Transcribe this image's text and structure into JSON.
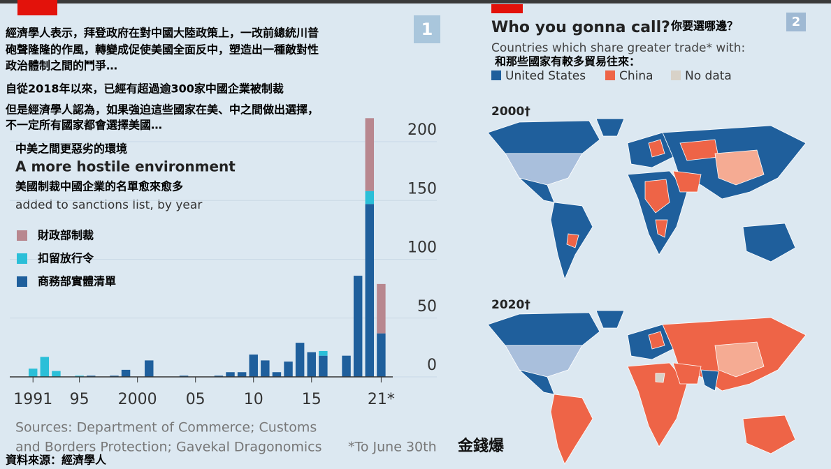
{
  "headline": [
    "經濟學人表示，拜登政府在對中國大陸政策上，一改前總統川普",
    "砲聲隆隆的作風，轉變成促使美國全面反中，塑造出一種敵對性",
    "政治體制之間的鬥爭…",
    "自從2018年以來，已經有超過逾300家中國企業被制裁",
    "但是經濟學人認為，如果強迫這些國家在美、中之間做出選擇，",
    "不一定所有國家都會選擇美國…"
  ],
  "badge_left": "1",
  "chart_data": {
    "type": "bar",
    "stacked": true,
    "title_zh": "中美之間更惡劣的環境",
    "title": "A more hostile environment",
    "subtitle_zh": "美國制裁中國企業的名單愈來愈多",
    "subtitle": "added to sanctions list, by year",
    "x": [
      1991,
      1992,
      1993,
      1994,
      1995,
      1996,
      1997,
      1998,
      1999,
      2000,
      2001,
      2002,
      2003,
      2004,
      2005,
      2006,
      2007,
      2008,
      2009,
      2010,
      2011,
      2012,
      2013,
      2014,
      2015,
      2016,
      2017,
      2018,
      2019,
      2020,
      2021
    ],
    "series": [
      {
        "name": "商務部實體清單",
        "color": "#1f5f9c",
        "values": [
          0,
          0,
          0,
          0,
          0,
          1,
          0,
          1,
          6,
          0,
          14,
          0,
          0,
          1,
          0,
          0,
          1,
          4,
          4,
          19,
          14,
          4,
          13,
          29,
          21,
          18,
          0,
          18,
          86,
          147,
          37
        ]
      },
      {
        "name": "扣留放行令",
        "color": "#2bbfd8",
        "values": [
          7,
          17,
          5,
          0,
          1,
          0,
          0,
          0,
          0,
          0,
          0,
          0,
          0,
          0,
          0,
          0,
          0,
          0,
          0,
          0,
          0,
          0,
          0,
          0,
          0,
          4,
          0,
          0,
          0,
          11,
          0
        ]
      },
      {
        "name": "財政部制裁",
        "color": "#b8878f",
        "values": [
          0,
          0,
          0,
          0,
          0,
          0,
          0,
          0,
          0,
          0,
          0,
          0,
          0,
          0,
          0,
          0,
          0,
          0,
          0,
          0,
          0,
          0,
          0,
          0,
          0,
          0,
          0,
          0,
          0,
          62,
          42
        ]
      }
    ],
    "xlim": [
      1989,
      2022
    ],
    "xticks": [
      1991,
      {
        "value": 1995,
        "label": "95"
      },
      2000,
      {
        "value": 2005,
        "label": "05"
      },
      {
        "value": 2010,
        "label": "10"
      },
      {
        "value": 2015,
        "label": "15"
      },
      {
        "value": 2021,
        "label": "21*"
      }
    ],
    "ylim": [
      0,
      200
    ],
    "yticks": [
      0,
      50,
      100,
      150,
      200
    ],
    "grid": true,
    "source": [
      "Sources: Department of Commerce; Customs",
      "and Borders Protection; Gavekal Dragonomics"
    ],
    "footnote": "*To June 30th"
  },
  "source_zh": "資料來源：經濟學人",
  "watermark": "金錢爆",
  "maps": {
    "badge": "2",
    "title": "Who you gonna call?",
    "title_zh": "你要選哪邊？",
    "subtitle": "Countries which share greater trade* with:",
    "subtitle_zh": "和那些國家有較多貿易往來：",
    "legend": [
      "United States",
      "China",
      "No data"
    ],
    "panels": [
      "2000†",
      "2020†"
    ]
  }
}
